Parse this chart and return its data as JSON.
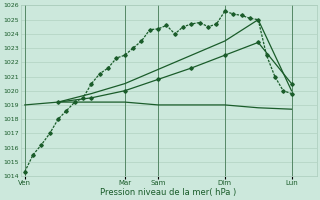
{
  "bg_color": "#cce8dc",
  "grid_color": "#aaccbb",
  "line_color": "#1a5c2a",
  "xlabel": "Pression niveau de la mer( hPa )",
  "ylim": [
    1014,
    1026
  ],
  "yticks": [
    1014,
    1015,
    1016,
    1017,
    1018,
    1019,
    1020,
    1021,
    1022,
    1023,
    1024,
    1025,
    1026
  ],
  "day_labels": [
    "Ven",
    "Mar",
    "Sam",
    "Dim",
    "Lun"
  ],
  "day_positions": [
    0,
    12,
    16,
    24,
    32
  ],
  "xlim": [
    -0.5,
    35
  ],
  "series1_x": [
    0,
    1,
    2,
    3,
    4,
    5,
    6,
    7,
    8,
    9,
    10,
    11,
    12,
    13,
    14,
    15,
    16,
    17,
    18,
    19,
    20,
    21,
    22,
    23,
    24,
    25,
    26,
    27,
    28,
    29,
    30,
    31,
    32
  ],
  "series1_y": [
    1014.3,
    1015.5,
    1016.2,
    1017.0,
    1018.0,
    1018.6,
    1019.2,
    1019.5,
    1020.5,
    1021.2,
    1021.6,
    1022.3,
    1022.5,
    1023.0,
    1023.5,
    1024.3,
    1024.35,
    1024.6,
    1024.0,
    1024.5,
    1024.7,
    1024.8,
    1024.5,
    1024.7,
    1025.6,
    1025.4,
    1025.3,
    1025.1,
    1025.0,
    1022.5,
    1021.0,
    1020.0,
    1019.8
  ],
  "series2_x": [
    0,
    4,
    8,
    12,
    16,
    20,
    24,
    28,
    32
  ],
  "series2_y": [
    1019.0,
    1019.2,
    1019.2,
    1019.2,
    1019.0,
    1019.0,
    1019.0,
    1018.8,
    1018.7
  ],
  "series3_x": [
    4,
    8,
    12,
    16,
    20,
    24,
    28,
    32
  ],
  "series3_y": [
    1019.2,
    1019.5,
    1020.0,
    1020.8,
    1021.6,
    1022.5,
    1023.4,
    1020.5
  ],
  "series4_x": [
    4,
    8,
    12,
    16,
    20,
    24,
    28,
    32
  ],
  "series4_y": [
    1019.2,
    1019.8,
    1020.5,
    1021.5,
    1022.5,
    1023.5,
    1025.0,
    1020.0
  ]
}
